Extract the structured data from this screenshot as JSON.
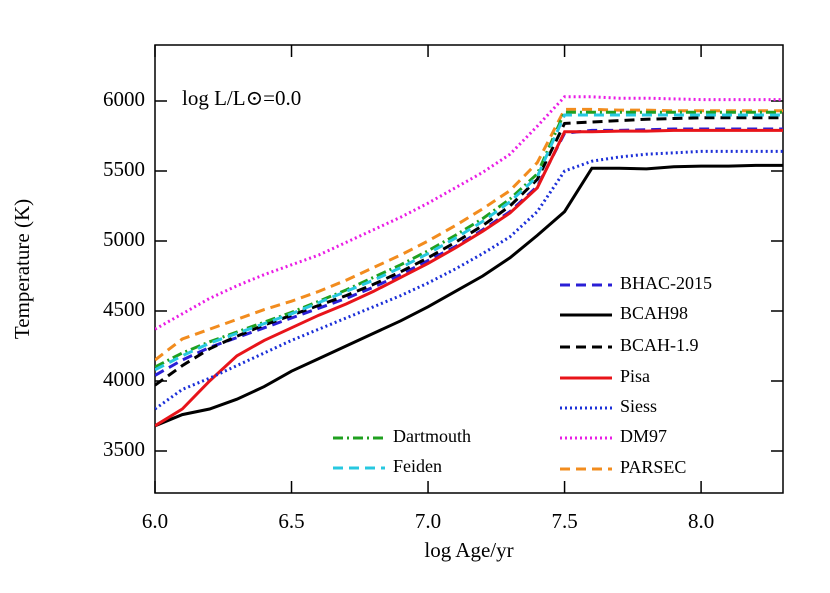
{
  "chart_data": {
    "type": "line",
    "xlabel": "log Age/yr",
    "ylabel": "Temperature (K)",
    "annotation": "log L/L⊙=0.0",
    "x": [
      6.0,
      6.1,
      6.2,
      6.3,
      6.4,
      6.5,
      6.6,
      6.7,
      6.8,
      6.9,
      7.0,
      7.1,
      7.2,
      7.3,
      7.4,
      7.5,
      7.6,
      7.7,
      7.8,
      7.9,
      8.0,
      8.1,
      8.2,
      8.3
    ],
    "xlim": [
      6.0,
      8.3
    ],
    "xticks": [
      {
        "value": 6,
        "label": "6.0"
      },
      6.5,
      {
        "value": 7,
        "label": "7.0"
      },
      7.5,
      {
        "value": 8,
        "label": "8.0"
      }
    ],
    "ylim": [
      3200,
      6400
    ],
    "yticks": [
      3500,
      4000,
      4500,
      5000,
      5500,
      6000
    ],
    "series": [
      {
        "name": "BHAC-2015",
        "color": "#2a1fd6",
        "style": "dashed",
        "values": [
          4040,
          4150,
          4240,
          4310,
          4380,
          4450,
          4520,
          4590,
          4670,
          4760,
          4860,
          4960,
          5080,
          5210,
          5390,
          5770,
          5790,
          5790,
          5795,
          5800,
          5800,
          5800,
          5800,
          5800
        ]
      },
      {
        "name": "BCAH98",
        "color": "#000000",
        "style": "solid",
        "values": [
          3680,
          3760,
          3800,
          3870,
          3960,
          4070,
          4160,
          4250,
          4340,
          4430,
          4530,
          4640,
          4750,
          4880,
          5040,
          5210,
          5520,
          5520,
          5515,
          5530,
          5535,
          5535,
          5540,
          5540
        ]
      },
      {
        "name": "BCAH-1.9",
        "color": "#000000",
        "style": "dashed",
        "values": [
          3970,
          4110,
          4230,
          4320,
          4400,
          4470,
          4540,
          4610,
          4690,
          4780,
          4880,
          4990,
          5110,
          5250,
          5440,
          5840,
          5850,
          5860,
          5870,
          5875,
          5880,
          5880,
          5880,
          5880
        ]
      },
      {
        "name": "Pisa",
        "color": "#e8141a",
        "style": "solid",
        "values": [
          3680,
          3800,
          4000,
          4180,
          4290,
          4380,
          4470,
          4550,
          4640,
          4740,
          4840,
          4950,
          5070,
          5200,
          5380,
          5780,
          5780,
          5785,
          5785,
          5790,
          5790,
          5790,
          5790,
          5790
        ]
      },
      {
        "name": "Siess",
        "color": "#1b2fd8",
        "style": "dotted",
        "values": [
          3800,
          3940,
          4020,
          4110,
          4200,
          4290,
          4370,
          4450,
          4530,
          4610,
          4700,
          4800,
          4910,
          5030,
          5210,
          5500,
          5570,
          5600,
          5620,
          5630,
          5640,
          5640,
          5640,
          5640
        ]
      },
      {
        "name": "DM97",
        "color": "#ea1de5",
        "style": "dotted",
        "values": [
          4370,
          4480,
          4590,
          4680,
          4760,
          4830,
          4900,
          4990,
          5080,
          5170,
          5270,
          5380,
          5490,
          5620,
          5820,
          6030,
          6030,
          6020,
          6020,
          6015,
          6010,
          6010,
          6010,
          6010
        ]
      },
      {
        "name": "PARSEC",
        "color": "#f28c1e",
        "style": "dashed",
        "values": [
          4150,
          4300,
          4370,
          4440,
          4510,
          4570,
          4640,
          4720,
          4810,
          4900,
          5000,
          5110,
          5230,
          5360,
          5560,
          5940,
          5940,
          5935,
          5935,
          5930,
          5930,
          5930,
          5930,
          5930
        ]
      },
      {
        "name": "Dartmouth",
        "color": "#20a020",
        "style": "dashdot",
        "values": [
          4100,
          4200,
          4280,
          4350,
          4420,
          4490,
          4570,
          4650,
          4740,
          4830,
          4930,
          5040,
          5160,
          5300,
          5480,
          5920,
          5920,
          5920,
          5920,
          5920,
          5920,
          5920,
          5920,
          5920
        ]
      },
      {
        "name": "Feiden",
        "color": "#27c8e0",
        "style": "dashed",
        "values": [
          4080,
          4180,
          4270,
          4340,
          4410,
          4480,
          4560,
          4640,
          4720,
          4810,
          4910,
          5020,
          5140,
          5280,
          5460,
          5900,
          5900,
          5900,
          5900,
          5900,
          5900,
          5900,
          5900,
          5900
        ]
      }
    ]
  }
}
